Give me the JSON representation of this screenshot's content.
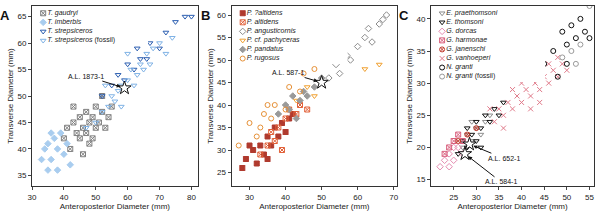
{
  "chart_data": [
    {
      "type": "scatter",
      "title": "A",
      "x_label": "Anteroposterior Diameter (mm)",
      "y_label": "Transverse Diameter (mm)",
      "xlim": [
        30,
        82
      ],
      "ylim": [
        33,
        67
      ],
      "xticks": [
        30,
        40,
        50,
        60,
        70,
        80
      ],
      "yticks": [
        35,
        40,
        45,
        50,
        55,
        60,
        65
      ],
      "grid": false,
      "series": [
        {
          "name": "T. gaudryi",
          "color": "#7f7f7f",
          "marker": "square-x-open",
          "x": [
            40,
            41,
            42,
            43,
            44,
            45,
            45,
            46,
            47,
            47,
            48,
            48,
            49,
            50,
            50,
            51,
            52,
            53,
            54,
            55,
            43,
            46,
            49,
            52
          ],
          "values": [
            42,
            44,
            40,
            45,
            43,
            46,
            42,
            44,
            47,
            43,
            45,
            41,
            46,
            44,
            48,
            45,
            47,
            44,
            46,
            48,
            48,
            39,
            42,
            50
          ]
        },
        {
          "name": "T. imberbis",
          "color": "#a9cdef",
          "marker": "diamond",
          "x": [
            33,
            34,
            35,
            36,
            37,
            38,
            39,
            40,
            41,
            42,
            38,
            35,
            36
          ],
          "values": [
            38,
            40,
            41,
            38,
            42,
            40,
            43,
            39,
            41,
            37,
            36,
            36,
            43
          ]
        },
        {
          "name": "T. strepsiceros",
          "color": "#2a5db0",
          "marker": "triangle-down-open",
          "x": [
            52,
            55,
            57,
            60,
            62,
            64,
            67,
            70,
            72,
            75,
            78,
            80,
            59,
            63,
            66
          ],
          "values": [
            50,
            52,
            54,
            56,
            55,
            57,
            60,
            59,
            62,
            64,
            65,
            65,
            53,
            59,
            57
          ]
        },
        {
          "name": "T. strepsiceros (fossil)",
          "color": "#7fb2e5",
          "marker": "triangle-down-open",
          "x": [
            47,
            50,
            52,
            54,
            55,
            56,
            57,
            58,
            60,
            61,
            62,
            63,
            64,
            65,
            66,
            67,
            68,
            70,
            72,
            74,
            58,
            53,
            60
          ],
          "values": [
            44,
            45,
            47,
            48,
            50,
            49,
            51,
            52,
            53,
            55,
            52,
            54,
            56,
            55,
            58,
            56,
            59,
            60,
            58,
            61,
            48,
            52,
            58
          ]
        }
      ],
      "annotations": [
        {
          "text": "A.L. 1873-1",
          "x": 59,
          "y": 51.5
        }
      ]
    },
    {
      "type": "scatter",
      "title": "B",
      "x_label": "Anteroposterior Diameter (mm)",
      "y_label": "Transverse Diameter (mm)",
      "xlim": [
        25,
        71
      ],
      "ylim": [
        22,
        62
      ],
      "xticks": [
        30,
        40,
        50,
        60,
        70
      ],
      "yticks": [
        25,
        30,
        35,
        40,
        45,
        50,
        55,
        60
      ],
      "grid": false,
      "series": [
        {
          "name": "P. ?altidens",
          "color": "#b03a2e",
          "marker": "square-x",
          "x": [
            28,
            29,
            31,
            32,
            33,
            34,
            35,
            36,
            37,
            38,
            39,
            40,
            41,
            42,
            30,
            35
          ],
          "values": [
            26,
            28,
            30,
            27,
            31,
            29,
            33,
            31,
            35,
            33,
            36,
            34,
            37,
            38,
            31,
            28
          ]
        },
        {
          "name": "P. altidens",
          "color": "#e2623a",
          "marker": "square-x-open",
          "x": [
            33,
            35,
            36,
            38,
            40,
            41,
            43,
            44,
            46,
            37,
            39
          ],
          "values": [
            29,
            31,
            34,
            35,
            37,
            39,
            38,
            40,
            39,
            32,
            30
          ]
        },
        {
          "name": "P. angusticornis",
          "color": "#8c8c8c",
          "marker": "diamond-open",
          "x": [
            52,
            54,
            55,
            57,
            58,
            60,
            62,
            63,
            64,
            66,
            67,
            68,
            56
          ],
          "values": [
            46,
            49,
            47,
            51,
            50,
            53,
            55,
            57,
            54,
            58,
            59,
            60,
            52
          ]
        },
        {
          "name": "P. cf. pachyceras",
          "color": "#f0a030",
          "marker": "triangle-down-open",
          "x": [
            43,
            46,
            48,
            66,
            62
          ],
          "values": [
            41,
            44,
            42,
            49,
            48
          ]
        },
        {
          "name": "P. pandatus",
          "color": "#9a9a9a",
          "marker": "diamond",
          "x": [
            38,
            40,
            41,
            42,
            44,
            45,
            46,
            48,
            50,
            43
          ],
          "values": [
            38,
            40,
            39,
            42,
            41,
            43,
            42,
            44,
            46,
            37
          ]
        },
        {
          "name": "P. rugosus",
          "color": "#e69138",
          "marker": "circle-open",
          "x": [
            27,
            30,
            32,
            34,
            36,
            37,
            40,
            41,
            44,
            45,
            48,
            50,
            35,
            33
          ],
          "values": [
            31,
            36,
            33,
            38,
            37,
            40,
            39,
            44,
            43,
            47,
            48,
            53,
            40,
            35
          ]
        }
      ],
      "annotations": [
        {
          "text": "A.L. 587-1",
          "x": 50,
          "y": 45
        }
      ]
    },
    {
      "type": "scatter",
      "title": "C",
      "x_label": "Anteroposterior Diameter (mm)",
      "y_label": "Transverse Diameter (mm)",
      "xlim": [
        20,
        56
      ],
      "ylim": [
        14,
        42
      ],
      "xticks": [
        25,
        30,
        35,
        40,
        45,
        50,
        55
      ],
      "yticks": [
        15,
        20,
        25,
        30,
        35,
        40
      ],
      "grid": false,
      "series": [
        {
          "name": "E. praethomsoni",
          "color": "#8c8c8c",
          "marker": "triangle-down-open",
          "x": [
            27,
            28,
            29,
            30,
            31,
            32,
            33,
            29
          ],
          "values": [
            20,
            22,
            21,
            23,
            22,
            24,
            25,
            24
          ]
        },
        {
          "name": "E. thomsoni",
          "color": "#111111",
          "marker": "triangle-down-open",
          "x": [
            26,
            27,
            28,
            29,
            30,
            30,
            31,
            32,
            33,
            34,
            35,
            36,
            28,
            31
          ],
          "values": [
            19,
            21,
            20,
            22,
            21,
            24,
            23,
            25,
            24,
            26,
            25,
            27,
            23,
            20
          ]
        },
        {
          "name": "G. dorcas",
          "color": "#e58bb0",
          "marker": "diamond-open",
          "x": [
            22,
            23,
            24,
            25,
            26,
            27,
            24,
            25
          ],
          "values": [
            17,
            18,
            19,
            18,
            20,
            19,
            17,
            20
          ]
        },
        {
          "name": "G. harmonae",
          "color": "#d9607e",
          "marker": "square-x-open",
          "x": [
            23,
            24,
            25,
            26,
            27
          ],
          "values": [
            19,
            20,
            21,
            22,
            21
          ]
        },
        {
          "name": "G. janenschi",
          "color": "#c0392b",
          "marker": "circle-x-open",
          "x": [
            26,
            28,
            30
          ],
          "values": [
            21,
            22,
            23
          ]
        },
        {
          "name": "G. vanhoeperi",
          "color": "#e07a8a",
          "marker": "x-thin-open",
          "x": [
            34,
            35,
            36,
            37,
            38,
            39,
            40,
            41,
            42,
            43,
            44,
            45,
            46,
            47,
            48,
            49,
            50,
            38,
            42,
            46,
            36,
            40,
            44,
            48,
            33
          ],
          "values": [
            24,
            26,
            25,
            27,
            26,
            28,
            27,
            29,
            28,
            30,
            29,
            31,
            30,
            32,
            31,
            33,
            32,
            29,
            26,
            33,
            23,
            30,
            27,
            34,
            26
          ]
        },
        {
          "name": "N. granti",
          "color": "#111111",
          "marker": "circle-open",
          "x": [
            45,
            47,
            48,
            49,
            50,
            51,
            52,
            53,
            54,
            55,
            50
          ],
          "values": [
            33,
            35,
            31,
            38,
            36,
            39,
            37,
            40,
            38,
            37,
            33
          ]
        },
        {
          "name": "N. granti (fossil)",
          "color": "#9a9a9a",
          "marker": "circle-open",
          "x": [
            49,
            51,
            53,
            55,
            52
          ],
          "values": [
            34,
            35,
            36,
            42,
            33
          ]
        }
      ],
      "annotations": [
        {
          "text": "A.L. 652-1",
          "x": 28.5,
          "y": 20.5
        },
        {
          "text": "A.L. 584-1",
          "x": 27.5,
          "y": 19
        }
      ]
    }
  ]
}
